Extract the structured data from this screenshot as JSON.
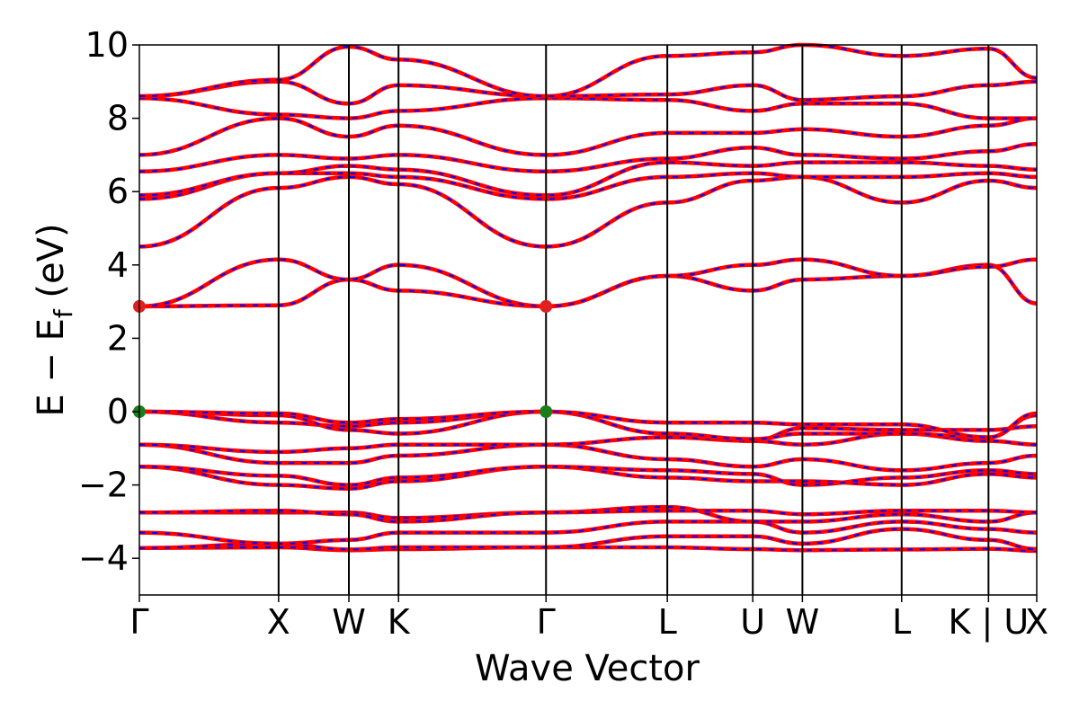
{
  "chart_data": {
    "type": "line",
    "title": "",
    "xlabel": "Wave Vector",
    "ylabel_main": "E − E",
    "ylabel_sub": "f",
    "ylabel_unit": " (eV)",
    "ylim": [
      -5,
      10
    ],
    "yticks": [
      -4,
      -2,
      0,
      2,
      4,
      6,
      8,
      10
    ],
    "ytick_labels": [
      "−4",
      "−2",
      "0",
      "2",
      "4",
      "6",
      "8",
      "10"
    ],
    "xlim": [
      0,
      10
    ],
    "kpoints": [
      {
        "label": "Γ",
        "x": 0.0
      },
      {
        "label": "X",
        "x": 1.01
      },
      {
        "label": "W",
        "x": 1.52
      },
      {
        "label": "K",
        "x": 1.88
      },
      {
        "label": "Γ",
        "x": 2.95
      },
      {
        "label": "L",
        "x": 3.83
      },
      {
        "label": "U",
        "x": 4.45
      },
      {
        "label": "W",
        "x": 4.81
      },
      {
        "label": "L",
        "x": 5.53
      },
      {
        "label": "K | U",
        "x": 6.16
      },
      {
        "label": "X",
        "x": 6.51
      }
    ],
    "vbm_marker": {
      "color": "#1a7f1a",
      "points": [
        [
          0.0,
          0.0
        ],
        [
          2.95,
          0.0
        ]
      ]
    },
    "cbm_marker": {
      "color": "#e0201f",
      "points": [
        [
          0.0,
          2.87
        ],
        [
          2.95,
          2.87
        ]
      ]
    },
    "colors": {
      "line": "#ff0000",
      "dash": "#0000ff",
      "vline": "#000000"
    },
    "bands": [
      {
        "name": "band-1",
        "values": [
          -3.72,
          -3.7,
          -3.78,
          -3.75,
          -3.7,
          -3.7,
          -3.75,
          -3.78,
          -3.76,
          -3.74,
          -3.8
        ]
      },
      {
        "name": "band-2",
        "values": [
          -3.72,
          -3.6,
          -3.76,
          -3.7,
          -3.7,
          -3.4,
          -3.4,
          -3.6,
          -3.2,
          -3.5,
          -3.75
        ]
      },
      {
        "name": "band-3",
        "values": [
          -3.3,
          -3.6,
          -3.5,
          -3.3,
          -3.3,
          -3.0,
          -3.0,
          -3.3,
          -3.0,
          -3.2,
          -3.3
        ]
      },
      {
        "name": "band-4",
        "values": [
          -2.75,
          -2.75,
          -2.75,
          -2.9,
          -2.75,
          -2.6,
          -3.0,
          -3.0,
          -2.8,
          -3.0,
          -2.75
        ]
      },
      {
        "name": "band-5",
        "values": [
          -2.75,
          -2.7,
          -2.8,
          -3.0,
          -2.75,
          -2.7,
          -2.7,
          -2.8,
          -2.7,
          -2.7,
          -2.75
        ]
      },
      {
        "name": "band-6",
        "values": [
          -1.5,
          -2.0,
          -2.1,
          -1.9,
          -1.5,
          -1.8,
          -1.9,
          -1.9,
          -2.0,
          -1.7,
          -1.8
        ]
      },
      {
        "name": "band-7",
        "values": [
          -1.5,
          -1.75,
          -2.0,
          -1.8,
          -1.5,
          -1.6,
          -1.7,
          -2.0,
          -1.8,
          -1.6,
          -1.7
        ]
      },
      {
        "name": "band-8",
        "values": [
          -0.9,
          -1.4,
          -1.4,
          -1.2,
          -0.9,
          -1.3,
          -1.5,
          -1.3,
          -1.6,
          -1.4,
          -1.2
        ]
      },
      {
        "name": "band-9",
        "values": [
          -0.9,
          -1.1,
          -1.0,
          -0.9,
          -0.9,
          -0.7,
          -0.8,
          -0.9,
          -0.6,
          -0.8,
          -0.9
        ]
      },
      {
        "name": "band-10",
        "values": [
          0.0,
          -0.3,
          -0.4,
          -0.3,
          0.0,
          -0.6,
          -0.8,
          -0.45,
          -0.5,
          -0.5,
          -0.4
        ]
      },
      {
        "name": "band-11",
        "values": [
          0.0,
          -0.1,
          -0.5,
          -0.6,
          0.0,
          -0.6,
          -0.75,
          -0.6,
          -0.6,
          -0.7,
          -0.1
        ]
      },
      {
        "name": "band-12",
        "values": [
          0.0,
          -0.05,
          -0.3,
          -0.2,
          0.0,
          -0.3,
          -0.3,
          -0.35,
          -0.35,
          -0.7,
          -0.05
        ]
      },
      {
        "name": "band-13",
        "values": [
          2.87,
          2.9,
          3.6,
          3.3,
          2.87,
          3.7,
          3.3,
          3.6,
          3.7,
          4.0,
          2.95
        ]
      },
      {
        "name": "band-14",
        "values": [
          2.87,
          4.15,
          3.6,
          4.0,
          2.87,
          3.7,
          4.0,
          4.15,
          3.7,
          3.95,
          4.15
        ]
      },
      {
        "name": "band-15",
        "values": [
          4.5,
          6.1,
          6.4,
          6.2,
          4.5,
          5.7,
          6.3,
          6.4,
          5.7,
          6.3,
          6.1
        ]
      },
      {
        "name": "band-16",
        "values": [
          5.8,
          6.5,
          6.5,
          6.4,
          5.8,
          6.4,
          6.5,
          6.4,
          6.4,
          6.5,
          6.4
        ]
      },
      {
        "name": "band-17",
        "values": [
          5.9,
          6.5,
          6.7,
          6.6,
          5.9,
          6.8,
          6.7,
          6.8,
          6.8,
          6.7,
          6.6
        ]
      },
      {
        "name": "band-18",
        "values": [
          6.55,
          7.0,
          6.9,
          7.0,
          6.55,
          6.9,
          7.2,
          7.0,
          6.9,
          7.1,
          7.3
        ]
      },
      {
        "name": "band-19",
        "values": [
          7.0,
          8.0,
          7.5,
          7.8,
          7.0,
          7.6,
          7.6,
          7.7,
          7.5,
          7.8,
          8.0
        ]
      },
      {
        "name": "band-20",
        "values": [
          8.55,
          8.1,
          8.0,
          8.2,
          8.55,
          8.5,
          8.2,
          8.4,
          8.4,
          8.0,
          8.0
        ]
      },
      {
        "name": "band-21",
        "values": [
          8.6,
          9.0,
          8.4,
          8.9,
          8.6,
          8.65,
          8.9,
          8.5,
          8.6,
          8.9,
          9.0
        ]
      },
      {
        "name": "band-22",
        "values": [
          8.6,
          9.05,
          9.95,
          9.6,
          8.6,
          9.7,
          9.8,
          10.0,
          9.7,
          9.9,
          9.1
        ]
      }
    ]
  }
}
